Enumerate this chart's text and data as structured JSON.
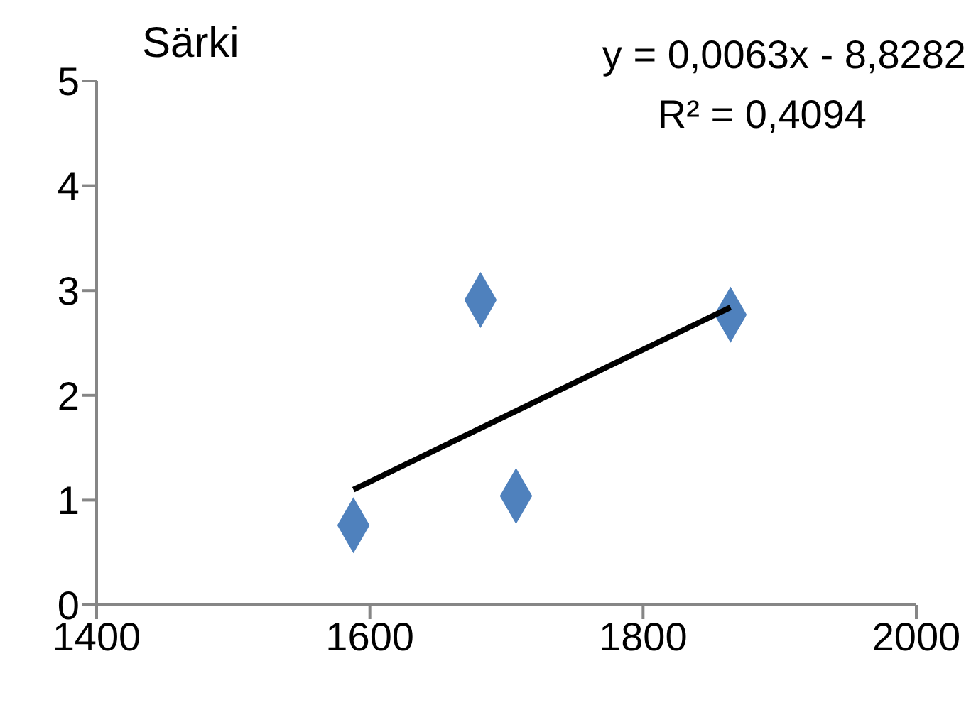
{
  "chart_data": {
    "type": "scatter",
    "title": "Särki",
    "annotations": [
      "y = 0,0063x - 8,8282",
      "R² = 0,4094"
    ],
    "xlim": [
      1400,
      2000
    ],
    "xticks": [
      1400,
      1600,
      1800,
      2000
    ],
    "ylim": [
      0,
      5
    ],
    "yticks": [
      0,
      1,
      2,
      3,
      4,
      5
    ],
    "grid": false,
    "legend": false,
    "marker": "diamond",
    "series": [
      {
        "color": "#4f81bd",
        "x": [
          1588,
          1681,
          1707,
          1864
        ],
        "values": [
          0.76,
          2.91,
          1.04,
          2.77
        ]
      },
      {
        "type": "line",
        "color": "#000000",
        "x": [
          1588,
          1864
        ],
        "values": [
          1.1,
          2.84
        ],
        "marker": "none",
        "line_style": "solid"
      }
    ]
  }
}
